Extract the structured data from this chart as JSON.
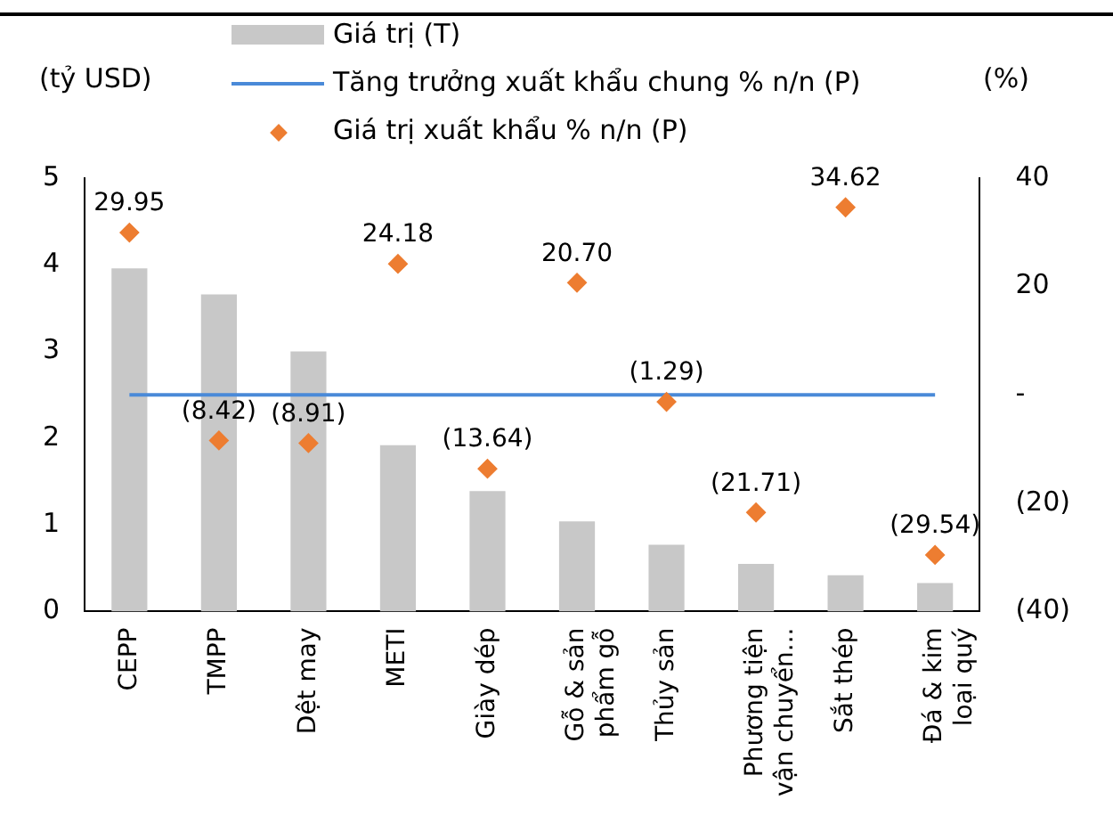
{
  "chart_data": {
    "type": "bar",
    "categories": [
      "CEPP",
      "TMPP",
      "Dệt may",
      "METI",
      "Giày dép",
      "Gỗ & sản phẩm gỗ",
      "Thủy sản",
      "Phương tiện vận chuyển...",
      "Sắt thép",
      "Đá & kim loại quý"
    ],
    "ylabel": "(tỷ USD)",
    "y2label": "(%)",
    "series": [
      {
        "name": "Giá trị (T)",
        "color": "#c8c8c8",
        "values": [
          3.96,
          3.66,
          3.0,
          1.92,
          1.39,
          1.04,
          0.77,
          0.55,
          0.42,
          0.33
        ]
      },
      {
        "name": "Tăng trưởng xuất khẩu chung % n/n (P)",
        "type": "line",
        "axis": "y2",
        "color": "#4a8ad8",
        "values": [
          0,
          0,
          0,
          0,
          0,
          0,
          0,
          0,
          0,
          0
        ]
      },
      {
        "name": "Giá trị xuất khẩu % n/n (P)",
        "type": "scatter",
        "axis": "y2",
        "color": "#ed7d31",
        "marker": "diamond",
        "values": [
          29.95,
          -8.42,
          -8.91,
          24.18,
          -13.64,
          20.7,
          -1.29,
          -21.71,
          34.62,
          -29.54
        ],
        "value_labels": [
          "29.95",
          "(8.42)",
          "(8.91)",
          "24.18",
          "(13.64)",
          "20.70",
          "(1.29)",
          "(21.71)",
          "34.62",
          "(29.54)"
        ]
      }
    ],
    "ylim": [
      0,
      5
    ],
    "yticks": [
      0,
      1,
      2,
      3,
      4,
      5
    ],
    "y2lim": [
      -40,
      40
    ],
    "y2ticks": [
      {
        "value": -40,
        "label": "(40)"
      },
      {
        "value": -20,
        "label": "(20)"
      },
      {
        "value": 0,
        "label": "-"
      },
      20,
      40
    ],
    "grid": false,
    "legend": "top"
  }
}
